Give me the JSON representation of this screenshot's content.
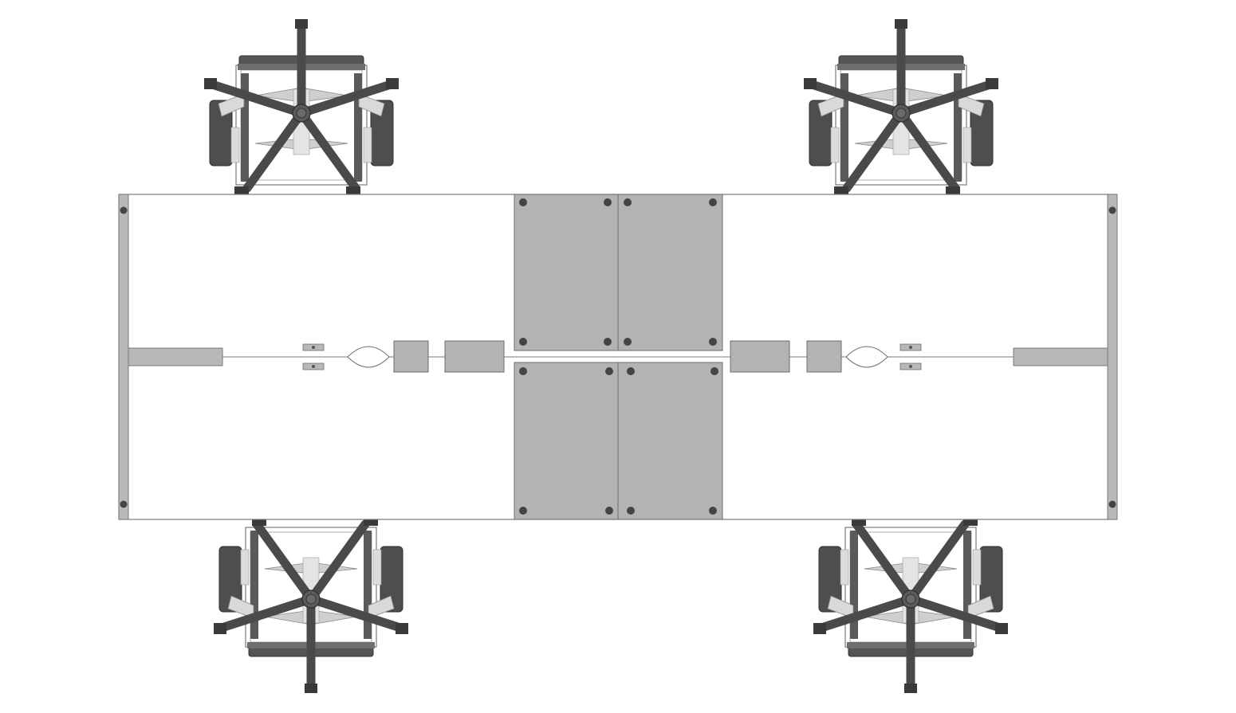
{
  "diagram": {
    "type": "furniture-floor-plan",
    "workstations": 4,
    "chairs": [
      "office-chair-top-left",
      "office-chair-top-right",
      "office-chair-bottom-left",
      "office-chair-bottom-right"
    ],
    "colors": {
      "background": "#ffffff",
      "desk_outline": "#7a7a7a",
      "panel_fill": "#b3b3b3",
      "chair_dark": "#4a4a4a",
      "chair_mid": "#8c8c8c",
      "chair_light": "#d6d6d6",
      "bolt": "#444444"
    }
  }
}
